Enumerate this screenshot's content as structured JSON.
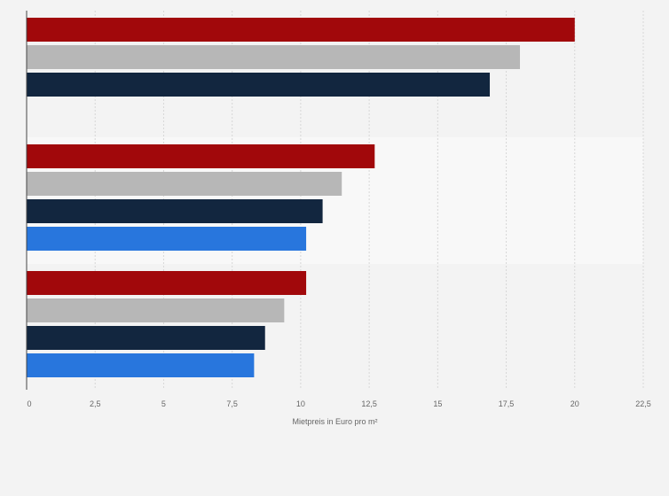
{
  "chart_data": {
    "type": "bar",
    "orientation": "horizontal",
    "xlabel": "Mietpreis in Euro pro m²",
    "xlim": [
      0,
      22.5
    ],
    "x_ticks": [
      0,
      2.5,
      5,
      7.5,
      10,
      12.5,
      15,
      17.5,
      20,
      22.5
    ],
    "x_tick_labels": [
      "0",
      "2,5",
      "5",
      "7,5",
      "10",
      "12,5",
      "15",
      "17,5",
      "20",
      "22,5"
    ],
    "grid": true,
    "legend": "none",
    "groups": [
      {
        "label": "",
        "bars": [
          {
            "series": 0,
            "value": 20.0
          },
          {
            "series": 1,
            "value": 18.0
          },
          {
            "series": 2,
            "value": 16.9
          }
        ]
      },
      {
        "label": "",
        "bars": [
          {
            "series": 0,
            "value": 12.7
          },
          {
            "series": 1,
            "value": 11.5
          },
          {
            "series": 2,
            "value": 10.8
          },
          {
            "series": 3,
            "value": 10.2
          }
        ]
      },
      {
        "label": "",
        "bars": [
          {
            "series": 0,
            "value": 10.2
          },
          {
            "series": 1,
            "value": 9.4
          },
          {
            "series": 2,
            "value": 8.7
          },
          {
            "series": 3,
            "value": 8.3
          }
        ]
      }
    ],
    "series_colors": [
      "#a1080b",
      "#b7b7b7",
      "#12263f",
      "#2876dd"
    ],
    "background_color": "#f3f3f3",
    "band_color": "#f8f8f8",
    "grid_color": "#d7d7d7",
    "axis_color": "#444444"
  }
}
